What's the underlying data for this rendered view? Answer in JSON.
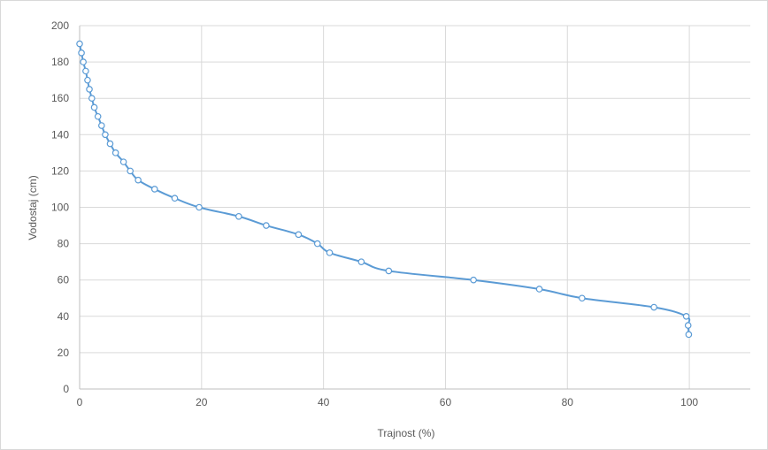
{
  "chart_data": {
    "type": "scatter",
    "xlabel": "Trajnost (%)",
    "ylabel": "Vodostaj (cm)",
    "xlim": [
      0,
      110
    ],
    "ylim": [
      0,
      200
    ],
    "xticks": [
      0,
      20,
      40,
      60,
      80,
      100
    ],
    "yticks": [
      0,
      20,
      40,
      60,
      80,
      100,
      120,
      140,
      160,
      180,
      200
    ],
    "grid": true,
    "legend": "none",
    "series_color": "#5b9bd5",
    "series": [
      {
        "points": [
          {
            "x": 0,
            "y": 190
          },
          {
            "x": 0.3,
            "y": 185
          },
          {
            "x": 0.6,
            "y": 180
          },
          {
            "x": 1.0,
            "y": 175
          },
          {
            "x": 1.3,
            "y": 170
          },
          {
            "x": 1.6,
            "y": 165
          },
          {
            "x": 2.0,
            "y": 160
          },
          {
            "x": 2.4,
            "y": 155
          },
          {
            "x": 3.0,
            "y": 150
          },
          {
            "x": 3.6,
            "y": 145
          },
          {
            "x": 4.2,
            "y": 140
          },
          {
            "x": 5.0,
            "y": 135
          },
          {
            "x": 5.9,
            "y": 130
          },
          {
            "x": 7.2,
            "y": 125
          },
          {
            "x": 8.3,
            "y": 120
          },
          {
            "x": 9.6,
            "y": 115
          },
          {
            "x": 12.3,
            "y": 110
          },
          {
            "x": 15.6,
            "y": 105
          },
          {
            "x": 19.6,
            "y": 100
          },
          {
            "x": 26.1,
            "y": 95
          },
          {
            "x": 30.6,
            "y": 90
          },
          {
            "x": 35.9,
            "y": 85
          },
          {
            "x": 39.0,
            "y": 80
          },
          {
            "x": 41.0,
            "y": 75
          },
          {
            "x": 46.2,
            "y": 70
          },
          {
            "x": 50.7,
            "y": 65
          },
          {
            "x": 64.6,
            "y": 60
          },
          {
            "x": 75.4,
            "y": 55
          },
          {
            "x": 82.4,
            "y": 50
          },
          {
            "x": 94.2,
            "y": 45
          },
          {
            "x": 99.5,
            "y": 40
          },
          {
            "x": 99.8,
            "y": 35
          },
          {
            "x": 99.9,
            "y": 30
          }
        ]
      }
    ]
  }
}
